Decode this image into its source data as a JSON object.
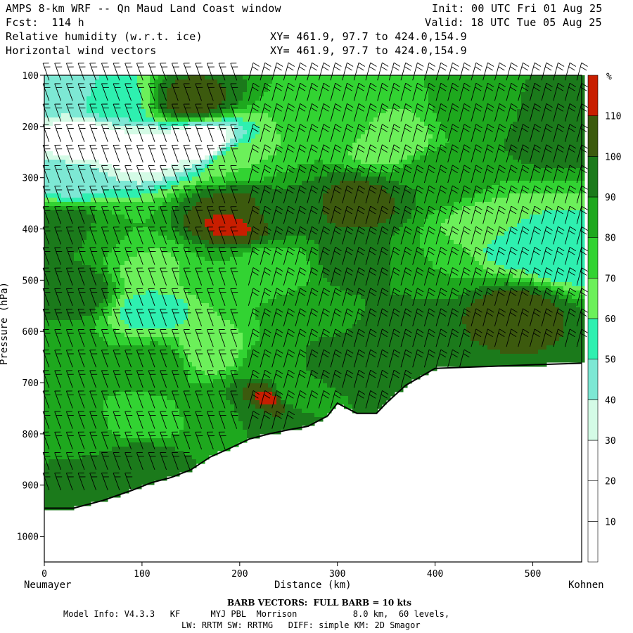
{
  "header": {
    "title": "AMPS 8-km WRF -- Qn Maud Land Coast window",
    "init": "Init: 00 UTC Fri 01 Aug 25",
    "fcst": "Fcst:  114 h",
    "valid": "Valid: 18 UTC Tue 05 Aug 25",
    "field1": "Relative humidity (w.r.t. ice)",
    "field2": "Horizontal wind vectors",
    "xy1": "XY= 461.9, 97.7 to 424.0,154.9",
    "xy2": "XY= 461.9, 97.7 to 424.0,154.9"
  },
  "axes": {
    "ylabel": "Pressure (hPa)",
    "xlabel": "Distance (km)",
    "left_end": "Neumayer",
    "right_end": "Kohnen"
  },
  "footer": {
    "barb": "BARB VECTORS:  FULL BARB = 10 kts",
    "model": "Model Info: V4.3.3   KF      MYJ PBL  Morrison           8.0 km,  60 levels,",
    "physics": "LW: RRTM SW: RRTMG   DIFF: simple KM: 2D Smagor"
  },
  "colors": {
    "c10": "#ffffff",
    "c20": "#ffffff",
    "c30": "#ffffff",
    "c40": "#d4fbe6",
    "c50": "#7de8d4",
    "c60": "#2ef0b0",
    "c70": "#6cf05a",
    "c80": "#32d332",
    "c90": "#1ea81e",
    "c100": "#1b7a1b",
    "c110": "#3c5a0e",
    "cmax": "#c81e00"
  },
  "chart_data": {
    "type": "heatmap",
    "title": "",
    "xlabel": "Distance (km)",
    "ylabel": "Pressure (hPa)",
    "xlim": [
      0,
      550
    ],
    "ylim": [
      1050,
      100
    ],
    "x_ticks": [
      0,
      100,
      200,
      300,
      400,
      500
    ],
    "y_ticks": [
      100,
      200,
      300,
      400,
      500,
      600,
      700,
      800,
      900,
      1000
    ],
    "colorbar": {
      "unit": "%",
      "levels": [
        10,
        20,
        30,
        40,
        50,
        60,
        70,
        80,
        90,
        100,
        110
      ]
    },
    "terrain_surface": {
      "x_km": [
        0,
        30,
        60,
        90,
        110,
        130,
        150,
        170,
        190,
        210,
        230,
        250,
        270,
        290,
        300,
        320,
        340,
        350,
        370,
        400,
        430,
        460,
        500,
        550
      ],
      "p_hpa": [
        945,
        945,
        930,
        910,
        895,
        885,
        870,
        845,
        828,
        810,
        800,
        792,
        785,
        765,
        740,
        760,
        760,
        740,
        705,
        672,
        670,
        668,
        665,
        662
      ]
    },
    "rh_points": [
      {
        "x": 20,
        "p": 130,
        "rh": 45
      },
      {
        "x": 70,
        "p": 150,
        "rh": 55
      },
      {
        "x": 150,
        "p": 150,
        "rh": 105
      },
      {
        "x": 40,
        "p": 230,
        "rh": 20
      },
      {
        "x": 100,
        "p": 250,
        "rh": 25
      },
      {
        "x": 160,
        "p": 230,
        "rh": 20
      },
      {
        "x": 25,
        "p": 300,
        "rh": 45
      },
      {
        "x": 200,
        "p": 270,
        "rh": 70
      },
      {
        "x": 300,
        "p": 200,
        "rh": 80
      },
      {
        "x": 350,
        "p": 230,
        "rh": 60
      },
      {
        "x": 450,
        "p": 180,
        "rh": 85
      },
      {
        "x": 520,
        "p": 200,
        "rh": 100
      },
      {
        "x": 20,
        "p": 400,
        "rh": 100
      },
      {
        "x": 70,
        "p": 420,
        "rh": 80
      },
      {
        "x": 110,
        "p": 480,
        "rh": 65
      },
      {
        "x": 110,
        "p": 560,
        "rh": 55
      },
      {
        "x": 170,
        "p": 480,
        "rh": 80
      },
      {
        "x": 200,
        "p": 360,
        "rh": 105
      },
      {
        "x": 190,
        "p": 390,
        "rh": 112
      },
      {
        "x": 240,
        "p": 350,
        "rh": 90
      },
      {
        "x": 230,
        "p": 480,
        "rh": 70
      },
      {
        "x": 320,
        "p": 350,
        "rh": 105
      },
      {
        "x": 320,
        "p": 470,
        "rh": 95
      },
      {
        "x": 270,
        "p": 560,
        "rh": 85
      },
      {
        "x": 400,
        "p": 300,
        "rh": 90
      },
      {
        "x": 400,
        "p": 470,
        "rh": 80
      },
      {
        "x": 450,
        "p": 400,
        "rh": 65
      },
      {
        "x": 480,
        "p": 430,
        "rh": 55
      },
      {
        "x": 530,
        "p": 450,
        "rh": 50
      },
      {
        "x": 480,
        "p": 560,
        "rh": 105
      },
      {
        "x": 380,
        "p": 600,
        "rh": 100
      },
      {
        "x": 30,
        "p": 520,
        "rh": 100
      },
      {
        "x": 20,
        "p": 650,
        "rh": 85
      },
      {
        "x": 60,
        "p": 680,
        "rh": 80
      },
      {
        "x": 120,
        "p": 660,
        "rh": 85
      },
      {
        "x": 170,
        "p": 640,
        "rh": 60
      },
      {
        "x": 230,
        "p": 660,
        "rh": 85
      },
      {
        "x": 300,
        "p": 660,
        "rh": 95
      },
      {
        "x": 230,
        "p": 730,
        "rh": 112
      },
      {
        "x": 30,
        "p": 800,
        "rh": 85
      },
      {
        "x": 100,
        "p": 780,
        "rh": 75
      },
      {
        "x": 160,
        "p": 760,
        "rh": 80
      },
      {
        "x": 200,
        "p": 760,
        "rh": 90
      },
      {
        "x": 50,
        "p": 900,
        "rh": 100
      },
      {
        "x": 100,
        "p": 850,
        "rh": 95
      },
      {
        "x": 250,
        "p": 720,
        "rh": 80
      }
    ]
  }
}
